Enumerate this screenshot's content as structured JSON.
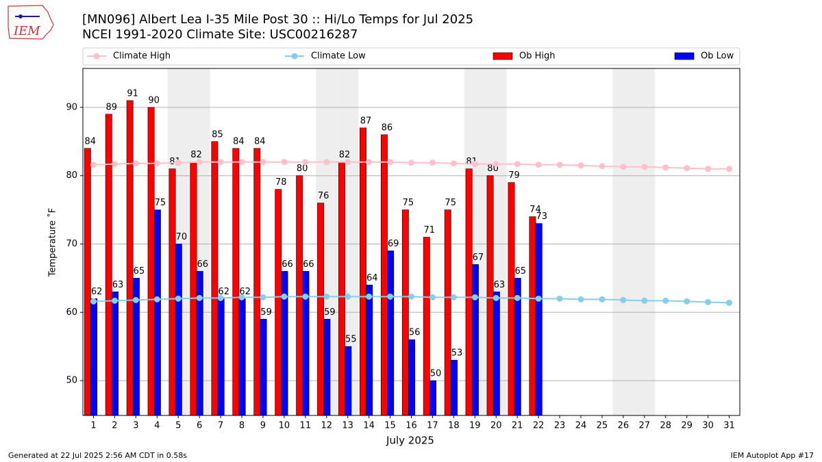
{
  "logo_text": "IEM",
  "footer": {
    "left": "Generated at 22 Jul 2025 2:56 AM CDT in 0.58s",
    "right": "IEM Autoplot App #17"
  },
  "chart_data": {
    "type": "bar",
    "title": "[MN096] Albert Lea I-35 Mile Post 30 :: Hi/Lo Temps for Jul 2025",
    "subtitle": "NCEI 1991-2020 Climate Site: USC00216287",
    "x_label": "July 2025",
    "y_label": "Temperature ˚F",
    "categories": [
      "1",
      "2",
      "3",
      "4",
      "5",
      "6",
      "7",
      "8",
      "9",
      "10",
      "11",
      "12",
      "13",
      "14",
      "15",
      "16",
      "17",
      "18",
      "19",
      "20",
      "21",
      "22",
      "23",
      "24",
      "25",
      "26",
      "27",
      "28",
      "29",
      "30",
      "31"
    ],
    "shaded_days": [
      5,
      6,
      12,
      13,
      19,
      20,
      26,
      27
    ],
    "ylim": [
      44.9,
      95.7
    ],
    "yticks": [
      50,
      60,
      70,
      80,
      90
    ],
    "grid": true,
    "legend": "top",
    "series": [
      {
        "name": "Climate High",
        "kind": "line",
        "color": "#ffc0cb",
        "values": [
          81.6,
          81.7,
          81.8,
          81.8,
          81.9,
          82.0,
          82.0,
          82.0,
          82.0,
          82.0,
          82.0,
          82.0,
          82.0,
          82.0,
          82.0,
          81.9,
          81.9,
          81.8,
          81.7,
          81.7,
          81.7,
          81.6,
          81.6,
          81.5,
          81.4,
          81.3,
          81.3,
          81.2,
          81.1,
          81.0,
          81.0
        ]
      },
      {
        "name": "Climate Low",
        "kind": "line",
        "color": "#87ceeb",
        "values": [
          61.6,
          61.7,
          61.8,
          61.9,
          62.0,
          62.1,
          62.1,
          62.2,
          62.2,
          62.3,
          62.3,
          62.3,
          62.3,
          62.3,
          62.3,
          62.3,
          62.2,
          62.2,
          62.2,
          62.1,
          62.1,
          62.0,
          62.0,
          61.9,
          61.9,
          61.8,
          61.7,
          61.7,
          61.6,
          61.5,
          61.4
        ]
      },
      {
        "name": "Ob High",
        "kind": "bar",
        "color": "#ff0000",
        "values": [
          84,
          89,
          91,
          90,
          81,
          82,
          85,
          84,
          84,
          78,
          80,
          76,
          82,
          87,
          86,
          75,
          71,
          75,
          81,
          80,
          79,
          74,
          null,
          null,
          null,
          null,
          null,
          null,
          null,
          null,
          null
        ]
      },
      {
        "name": "Ob Low",
        "kind": "bar",
        "color": "#0000ff",
        "values": [
          62,
          63,
          65,
          75,
          70,
          66,
          62,
          62,
          59,
          66,
          66,
          59,
          55,
          64,
          69,
          56,
          50,
          53,
          67,
          63,
          65,
          73,
          null,
          null,
          null,
          null,
          null,
          null,
          null,
          null,
          null
        ]
      }
    ]
  }
}
